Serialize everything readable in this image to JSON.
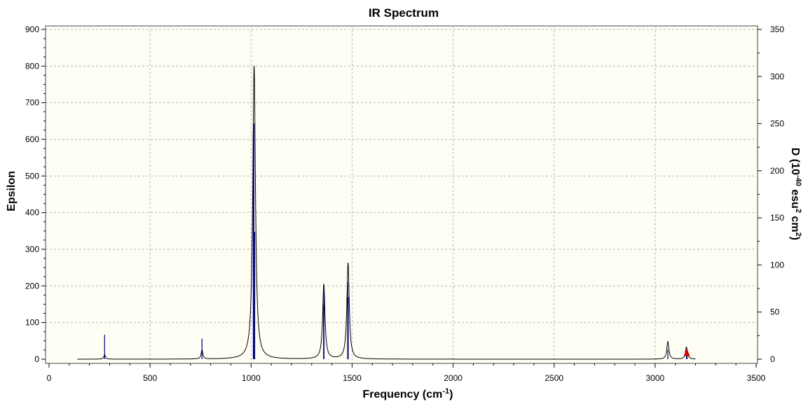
{
  "chart_data": {
    "type": "line",
    "title": "IR Spectrum",
    "xlabel": {
      "text": "Frequency (cm",
      "sup": "-1",
      "tail": ")"
    },
    "ylabel": "Epsilon",
    "y2label": {
      "t1": "D (10",
      "s1": "-40",
      "t2": " esu",
      "s2": "2",
      "t3": " cm",
      "s3": "2",
      "t4": ")"
    },
    "xlim": [
      0,
      3500
    ],
    "ylim": [
      0,
      900
    ],
    "y2lim": [
      0,
      350
    ],
    "x_ticks": [
      "0",
      "500",
      "1000",
      "1500",
      "2000",
      "2500",
      "3000",
      "3500"
    ],
    "y_ticks": [
      "0",
      "100",
      "200",
      "300",
      "400",
      "500",
      "600",
      "700",
      "800",
      "900"
    ],
    "y2_ticks": [
      "0",
      "50",
      "100",
      "150",
      "200",
      "250",
      "300",
      "350"
    ],
    "grid": true,
    "spectrum_range": [
      140,
      3200
    ],
    "peaks": [
      {
        "freq": 275,
        "epsilon": 12,
        "width": 5
      },
      {
        "freq": 757,
        "epsilon": 25,
        "width": 5
      },
      {
        "freq": 1015,
        "epsilon": 800,
        "width": 8
      },
      {
        "freq": 1360,
        "epsilon": 203,
        "width": 7
      },
      {
        "freq": 1480,
        "epsilon": 262,
        "width": 7
      },
      {
        "freq": 3063,
        "epsilon": 48,
        "width": 6
      },
      {
        "freq": 3155,
        "epsilon": 33,
        "width": 6
      }
    ],
    "sticks_D": [
      {
        "freq": 275,
        "D": 26
      },
      {
        "freq": 757,
        "D": 22
      },
      {
        "freq": 1011,
        "D": 240
      },
      {
        "freq": 1014,
        "D": 250
      },
      {
        "freq": 1018,
        "D": 135
      },
      {
        "freq": 1359,
        "D": 58
      },
      {
        "freq": 1361,
        "D": 72
      },
      {
        "freq": 1478,
        "D": 82
      },
      {
        "freq": 1481,
        "D": 66
      },
      {
        "freq": 3063,
        "D": 10
      },
      {
        "freq": 3155,
        "D": 8
      },
      {
        "freq": 3158,
        "D": 6
      }
    ],
    "marker": {
      "freq": 3157,
      "D": 2
    },
    "colors": {
      "plot_background": "#fffef5",
      "spectrum": "#000000",
      "sticks": "#000080",
      "marker": "#e00000",
      "grid": "#b4b4b4"
    }
  }
}
